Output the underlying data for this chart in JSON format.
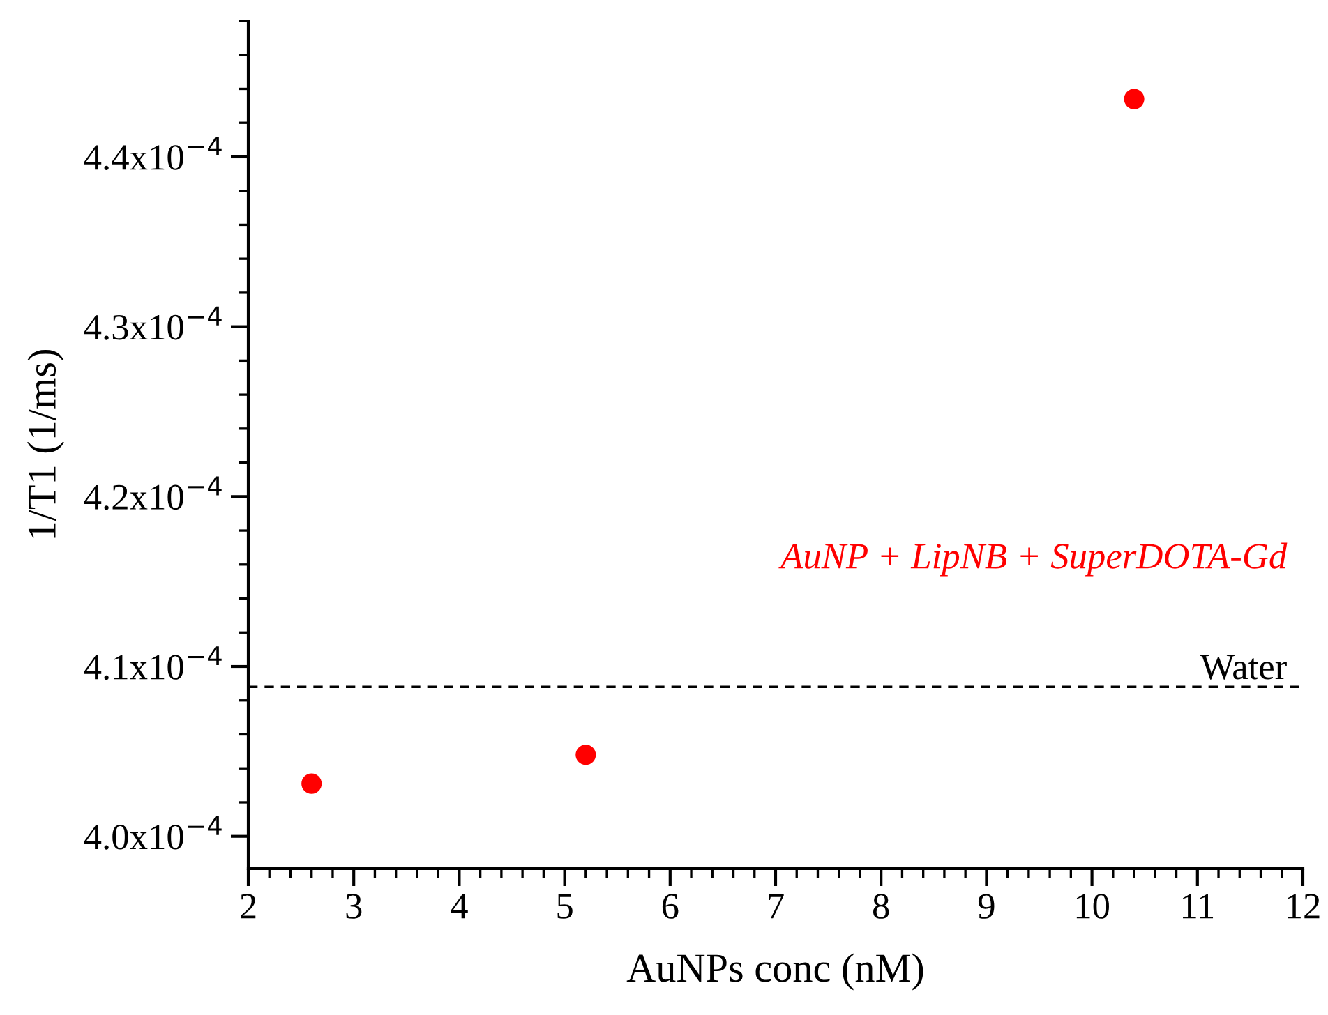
{
  "chart_data": {
    "type": "scatter",
    "xlabel": "AuNPs conc (nM)",
    "ylabel": "1/T1 (1/ms)",
    "x": [
      2.6,
      5.2,
      10.4
    ],
    "series": [
      {
        "name": "AuNP + LipNB + SuperDOTA-Gd",
        "color": "#ff0000",
        "values": [
          0.0004031,
          0.0004048,
          0.0004434
        ]
      }
    ],
    "xlim": [
      2,
      12
    ],
    "xticks": [
      2,
      3,
      4,
      5,
      6,
      7,
      8,
      9,
      10,
      11,
      12
    ],
    "ylim": [
      0.0003981,
      0.000448
    ],
    "yticks": [
      {
        "value": 0.0004,
        "label": "4.0x10$^{−4}$"
      },
      {
        "value": 0.00041,
        "label": "4.1x10$^{−4}$"
      },
      {
        "value": 0.00042,
        "label": "4.2x10$^{−4}$"
      },
      {
        "value": 0.00043,
        "label": "4.3x10$^{−4}$"
      },
      {
        "value": 0.00044,
        "label": "4.4x10$^{−4}$"
      }
    ],
    "ref_lines": [
      {
        "axis": "y",
        "value": 0.0004088,
        "label": "Water",
        "color": "#000000",
        "line_style": "dashed"
      }
    ],
    "marker": "circle",
    "grid": false,
    "legend": false
  }
}
